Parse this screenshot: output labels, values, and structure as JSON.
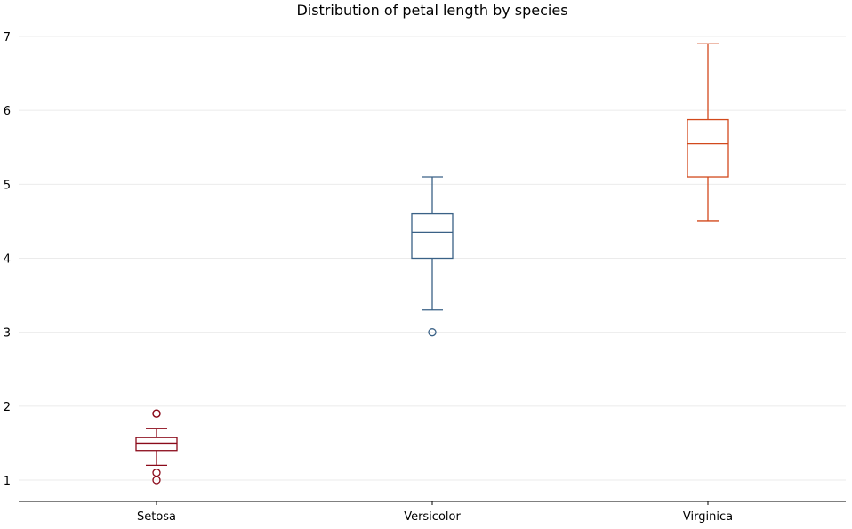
{
  "chart_data": {
    "type": "box",
    "title": "Distribution of petal length by species",
    "xlabel": "",
    "ylabel": "",
    "ylim": [
      0.7,
      7.2
    ],
    "yticks": [
      1,
      2,
      3,
      4,
      5,
      6,
      7
    ],
    "grid": "horizontal",
    "categories": [
      "Setosa",
      "Versicolor",
      "Virginica"
    ],
    "boxes": [
      {
        "category": "Setosa",
        "color": "#8b0a1a",
        "whisker_low": 1.2,
        "q1": 1.4,
        "median": 1.5,
        "q3": 1.575,
        "whisker_high": 1.7,
        "outliers": [
          1.0,
          1.1,
          1.9,
          1.9
        ]
      },
      {
        "category": "Versicolor",
        "color": "#3a6186",
        "whisker_low": 3.3,
        "q1": 4.0,
        "median": 4.35,
        "q3": 4.6,
        "whisker_high": 5.1,
        "outliers": [
          3.0
        ]
      },
      {
        "category": "Virginica",
        "color": "#d2491c",
        "whisker_low": 4.5,
        "q1": 5.1,
        "median": 5.55,
        "q3": 5.875,
        "whisker_high": 6.9,
        "outliers": []
      }
    ]
  }
}
